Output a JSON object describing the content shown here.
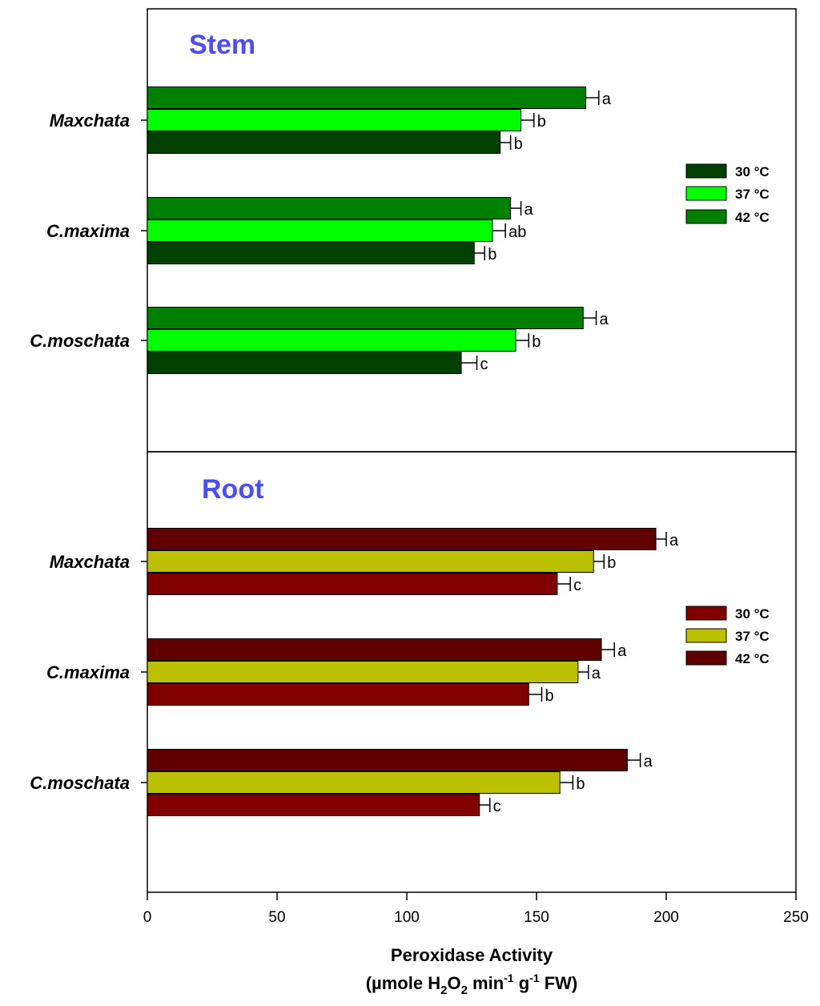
{
  "chart_data": [
    {
      "type": "bar",
      "orientation": "horizontal",
      "title": "Stem",
      "categories": [
        "Maxchata",
        "C.maxima",
        "C.moschata"
      ],
      "series": [
        {
          "name": "30 °C",
          "values": [
            136,
            126,
            121
          ],
          "errors": [
            4,
            4,
            6
          ],
          "letters": [
            "b",
            "b",
            "c"
          ],
          "color": "#004000"
        },
        {
          "name": "37 °C",
          "values": [
            144,
            133,
            142
          ],
          "errors": [
            5,
            5,
            5
          ],
          "letters": [
            "b",
            "ab",
            "b"
          ],
          "color": "#00ff00"
        },
        {
          "name": "42 °C",
          "values": [
            169,
            140,
            168
          ],
          "errors": [
            5,
            4,
            5
          ],
          "letters": [
            "a",
            "a",
            "a"
          ],
          "color": "#008000"
        }
      ],
      "legend_position": "right"
    },
    {
      "type": "bar",
      "orientation": "horizontal",
      "title": "Root",
      "categories": [
        "Maxchata",
        "C.maxima",
        "C.moschata"
      ],
      "series": [
        {
          "name": "30 °C",
          "values": [
            158,
            147,
            128
          ],
          "errors": [
            5,
            5,
            4
          ],
          "letters": [
            "c",
            "b",
            "c"
          ],
          "color": "#800000"
        },
        {
          "name": "37 °C",
          "values": [
            172,
            166,
            159
          ],
          "errors": [
            4,
            4,
            5
          ],
          "letters": [
            "b",
            "a",
            "b"
          ],
          "color": "#bbc000"
        },
        {
          "name": "42 °C",
          "values": [
            196,
            175,
            185
          ],
          "errors": [
            4,
            5,
            5
          ],
          "letters": [
            "a",
            "a",
            "a"
          ],
          "color": "#600000"
        }
      ],
      "legend_position": "right"
    }
  ],
  "x_axis": {
    "ticks": [
      "0",
      "50",
      "100",
      "150",
      "200",
      "250"
    ],
    "tick_values": [
      0,
      50,
      100,
      150,
      200,
      250
    ],
    "xlim": [
      0,
      250
    ],
    "title_line1": "Peroxidase Activity",
    "title_line2_parts": [
      "(µmole H",
      "2",
      "O",
      "2",
      " min",
      "-1",
      " g",
      "-1",
      " FW)"
    ]
  }
}
